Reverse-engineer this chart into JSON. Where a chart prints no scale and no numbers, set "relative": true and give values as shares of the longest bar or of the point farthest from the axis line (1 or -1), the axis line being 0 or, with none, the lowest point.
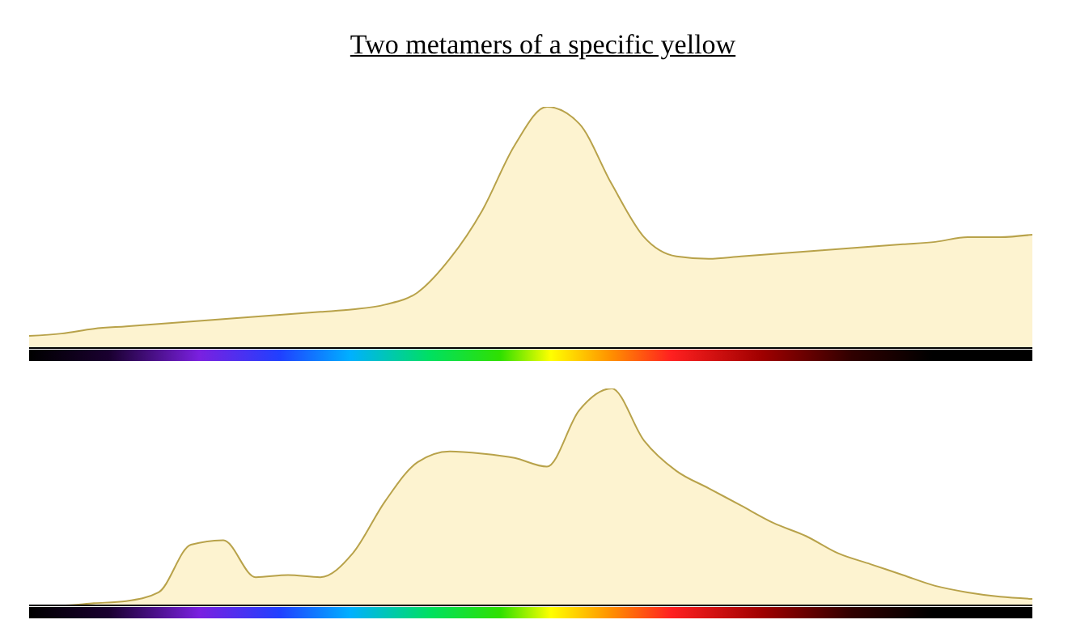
{
  "chart_data": [
    {
      "type": "area",
      "title": "Two metamers of a specific yellow",
      "relative": true,
      "categories": [
        null,
        null,
        null,
        null,
        null,
        null,
        null,
        null,
        null,
        null,
        null,
        null,
        null,
        null,
        null,
        null,
        null,
        null,
        null,
        null,
        null,
        null,
        null,
        null,
        null,
        null,
        null,
        null,
        null,
        null,
        null,
        null
      ],
      "series": [
        {
          "color": "#fdf3d0",
          "values": [
            0.05,
            0.06,
            0.08,
            0.09,
            0.1,
            0.11,
            0.12,
            0.13,
            0.14,
            0.15,
            0.16,
            0.18,
            0.23,
            0.37,
            0.57,
            0.84,
            1,
            0.93,
            0.68,
            0.46,
            0.38,
            0.37,
            0.38,
            0.39,
            0.4,
            0.41,
            0.42,
            0.43,
            0.44,
            0.46,
            0.46,
            0.47
          ]
        }
      ]
    },
    {
      "type": "area",
      "relative": true,
      "categories": [
        null,
        null,
        null,
        null,
        null,
        null,
        null,
        null,
        null,
        null,
        null,
        null,
        null,
        null,
        null,
        null,
        null,
        null,
        null,
        null,
        null,
        null,
        null,
        null,
        null,
        null,
        null,
        null,
        null,
        null,
        null,
        null
      ],
      "series": [
        {
          "color": "#fdf3d0",
          "values": [
            0,
            0,
            0.01,
            0.02,
            0.06,
            0.28,
            0.3,
            0.13,
            0.14,
            0.13,
            0.24,
            0.48,
            0.66,
            0.71,
            0.7,
            0.68,
            0.64,
            0.9,
            1,
            0.76,
            0.62,
            0.54,
            0.46,
            0.38,
            0.32,
            0.24,
            0.19,
            0.14,
            0.09,
            0.06,
            0.04,
            0.03
          ]
        }
      ]
    }
  ]
}
